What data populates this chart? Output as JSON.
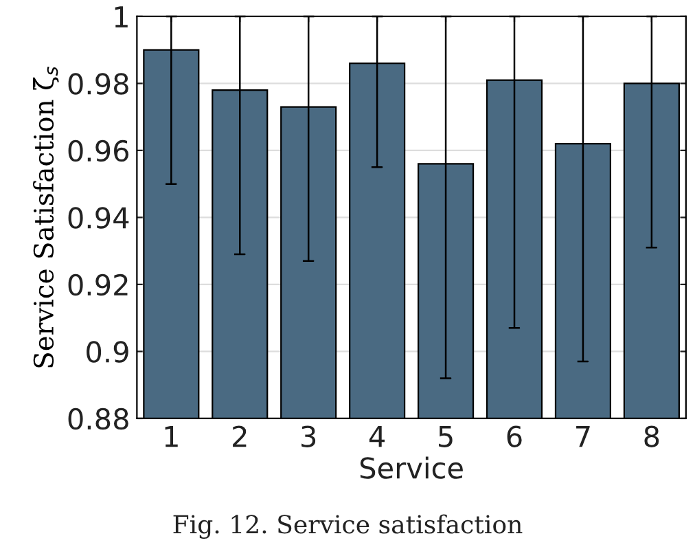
{
  "chart_data": {
    "type": "bar",
    "xlabel": "Service",
    "ylabel": "Service Satisfaction ζ̄$_{s}$",
    "categories": [
      "1",
      "2",
      "3",
      "4",
      "5",
      "6",
      "7",
      "8"
    ],
    "values": [
      0.99,
      0.978,
      0.973,
      0.986,
      0.956,
      0.981,
      0.962,
      0.98
    ],
    "errors": [
      [
        0.95,
        1.0
      ],
      [
        0.929,
        1.0
      ],
      [
        0.927,
        1.0
      ],
      [
        0.955,
        1.0
      ],
      [
        0.892,
        1.0
      ],
      [
        0.907,
        1.0
      ],
      [
        0.897,
        1.0
      ],
      [
        0.931,
        1.0
      ]
    ],
    "color": "#4a6a82",
    "ylim": [
      0.88,
      1.0
    ],
    "yticks": [
      0.88,
      0.9,
      0.92,
      0.94,
      0.96,
      0.98,
      {
        "value": 1.0,
        "label": "1"
      }
    ],
    "grid": "y",
    "annotations": [
      "Fig. 12. Service satisfaction"
    ]
  }
}
